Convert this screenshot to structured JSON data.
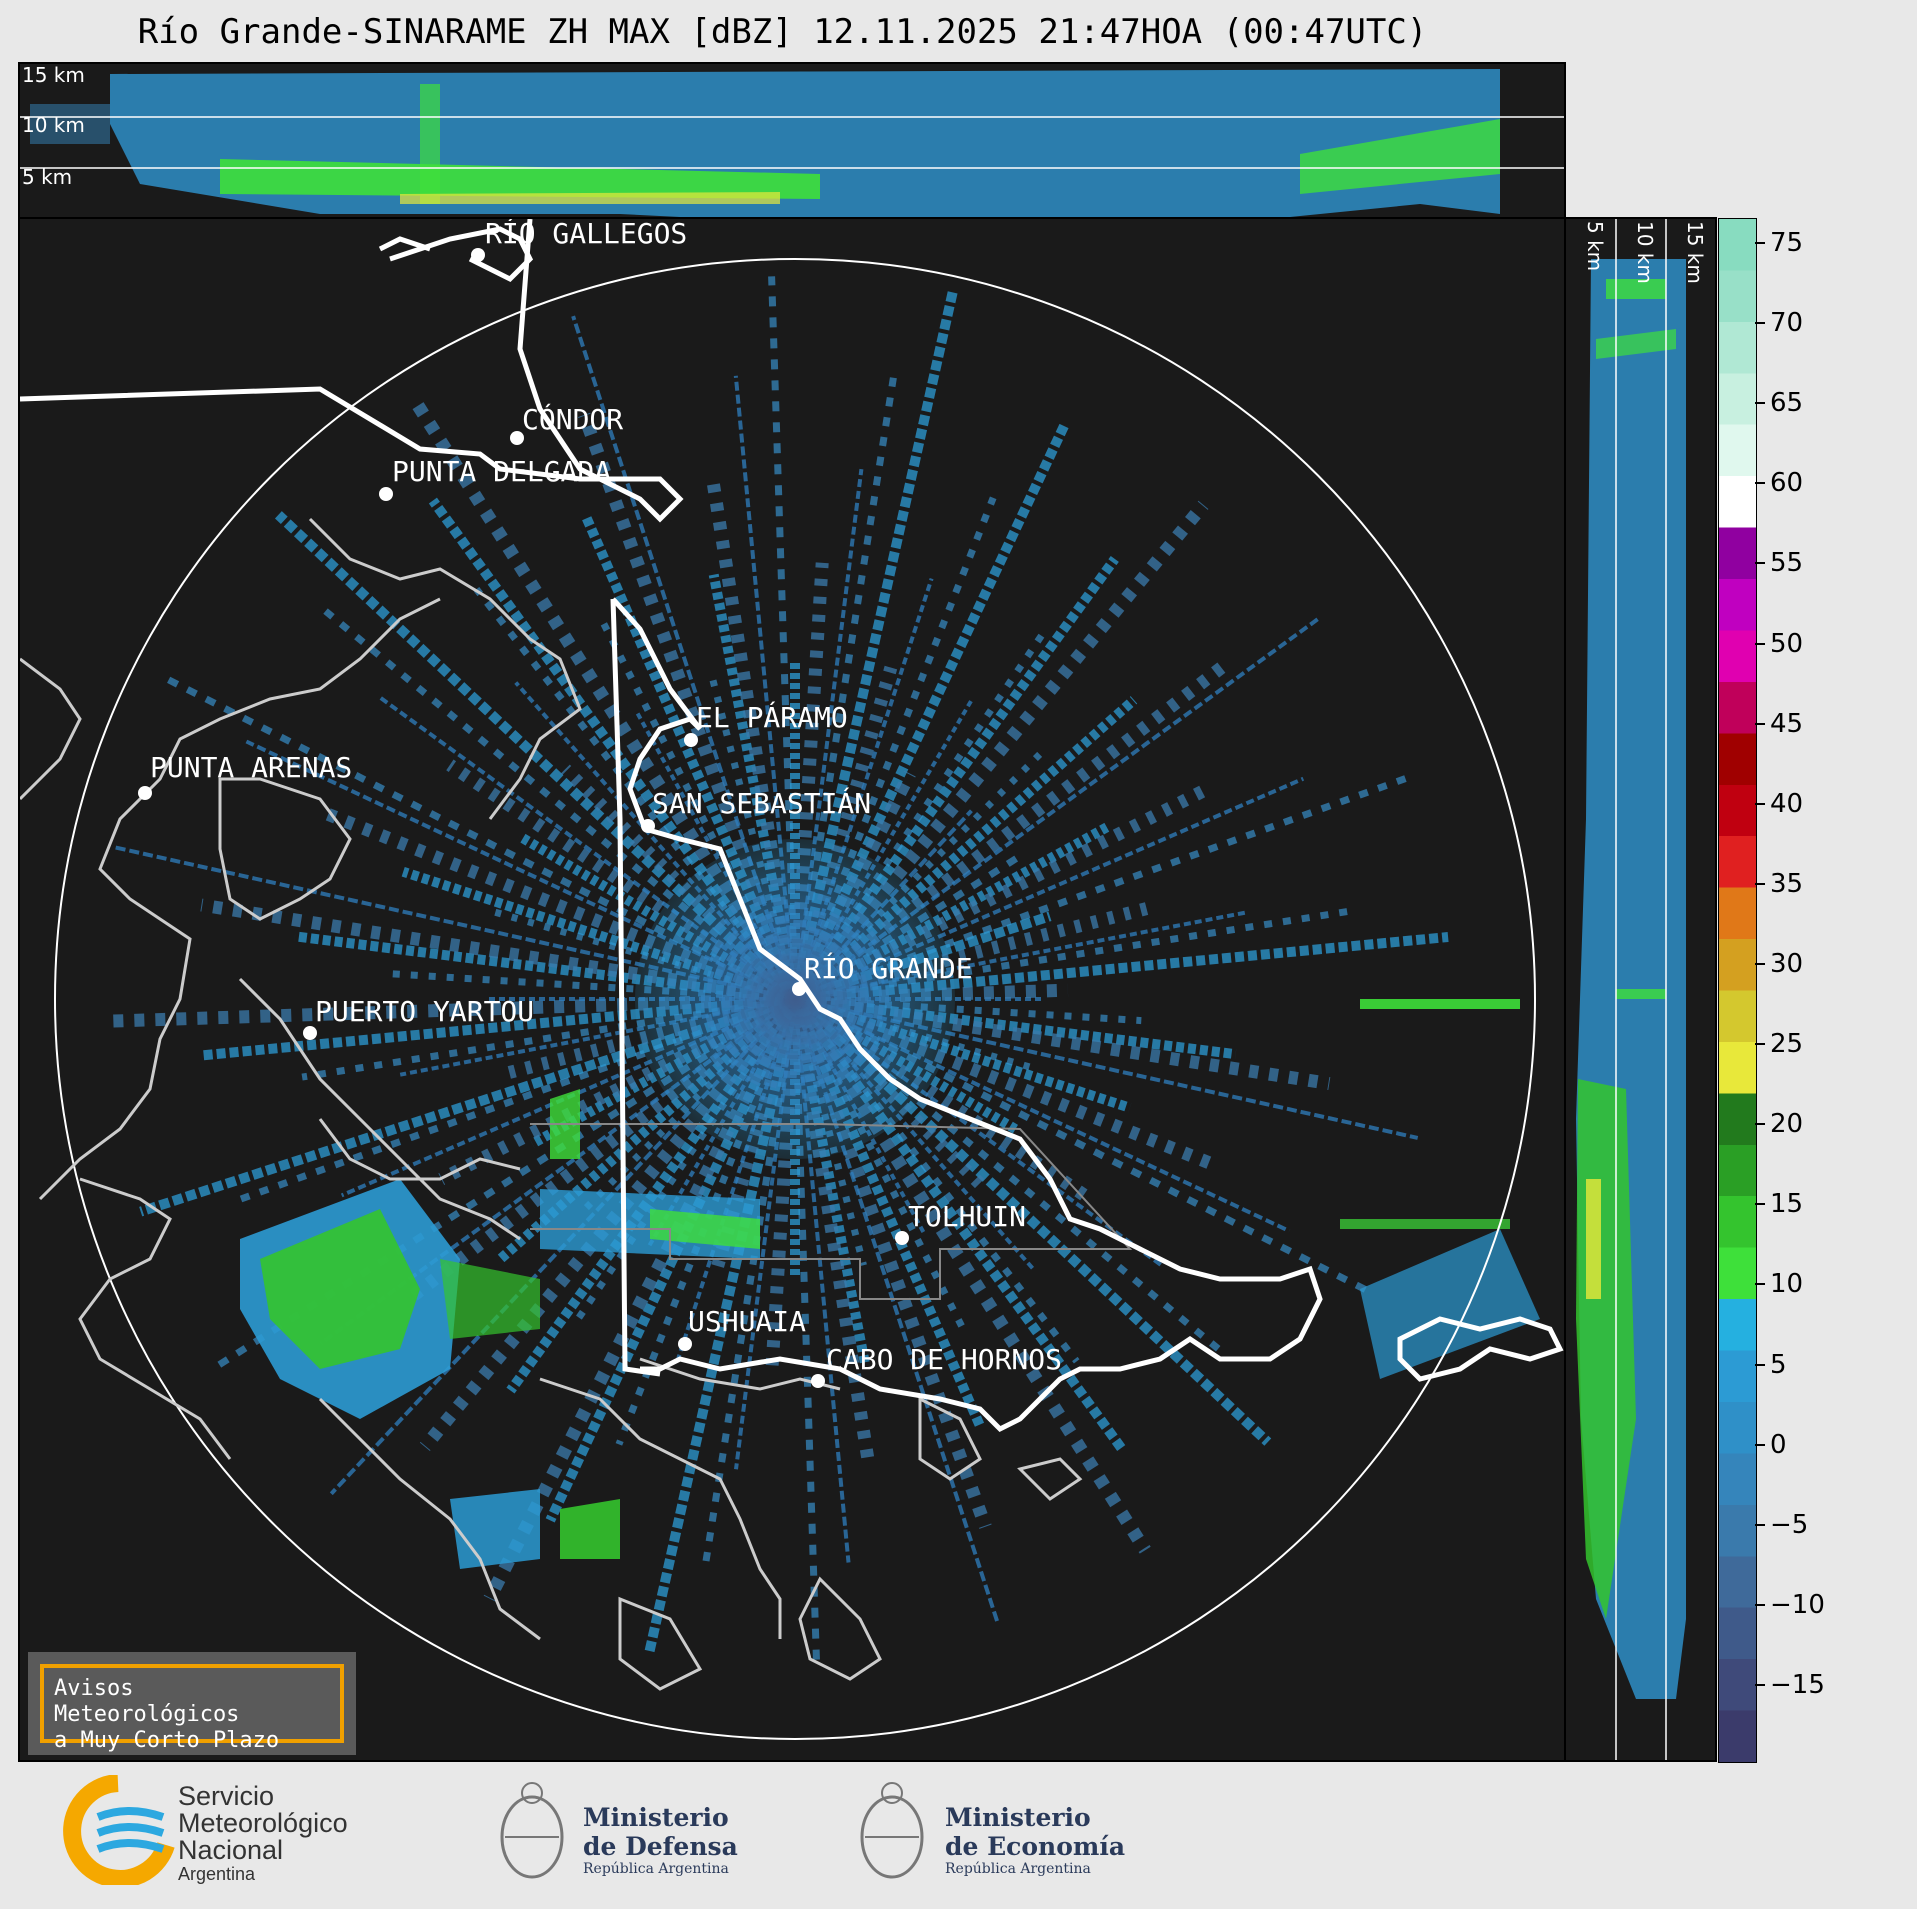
{
  "title": "Río Grande-SINARAME ZH MAX [dBZ] 12.11.2025 21:47HOA (00:47UTC)",
  "top_panel": {
    "height_labels": [
      "15 km",
      "10 km",
      "5 km"
    ]
  },
  "side_panel": {
    "height_labels": [
      "5 km",
      "10 km",
      "15 km"
    ]
  },
  "cities": [
    {
      "name": "RÍO GALLEGOS"
    },
    {
      "name": "CÓNDOR"
    },
    {
      "name": "PUNTA DELGADA"
    },
    {
      "name": "EL PÁRAMO"
    },
    {
      "name": "PUNTA ARENAS"
    },
    {
      "name": "SAN SEBASTIÁN"
    },
    {
      "name": "RÍO GRANDE"
    },
    {
      "name": "PUERTO YARTOU"
    },
    {
      "name": "TOLHUIN"
    },
    {
      "name": "USHUAIA"
    },
    {
      "name": "CABO DE HORNOS"
    }
  ],
  "colorbar": {
    "unit": "dBZ",
    "ticks": [
      "75",
      "70",
      "65",
      "60",
      "55",
      "50",
      "45",
      "40",
      "35",
      "30",
      "25",
      "20",
      "15",
      "10",
      "5",
      "0",
      "−5",
      "−10",
      "−15"
    ],
    "colors": [
      "#3b3b6b",
      "#3f4a7a",
      "#3f5a8a",
      "#3f6a9a",
      "#3a7aac",
      "#3585bb",
      "#2f90c8",
      "#2c9bd4",
      "#25b0e0",
      "#3ee03a",
      "#34c42e",
      "#2a9f25",
      "#227a1d",
      "#e8e83a",
      "#d4c82e",
      "#d4a020",
      "#e07818",
      "#e02020",
      "#c00010",
      "#a00000",
      "#c0005a",
      "#e000b0",
      "#c000c0",
      "#9000a0",
      "#ffffff",
      "#e0f8ee",
      "#c8f0e0",
      "#b0e8d4",
      "#98e0c8",
      "#88dcc0"
    ]
  },
  "warning": {
    "line1": "Avisos Meteorológicos",
    "line2": "a Muy Corto Plazo"
  },
  "logos": {
    "smn": {
      "line1": "Servicio",
      "line2": "Meteorológico",
      "line3": "Nacional",
      "line4": "Argentina"
    },
    "defensa": {
      "line1": "Ministerio",
      "line2": "de Defensa",
      "line3": "República Argentina"
    },
    "economia": {
      "line1": "Ministerio",
      "line2": "de Economía",
      "line3": "República Argentina"
    }
  }
}
